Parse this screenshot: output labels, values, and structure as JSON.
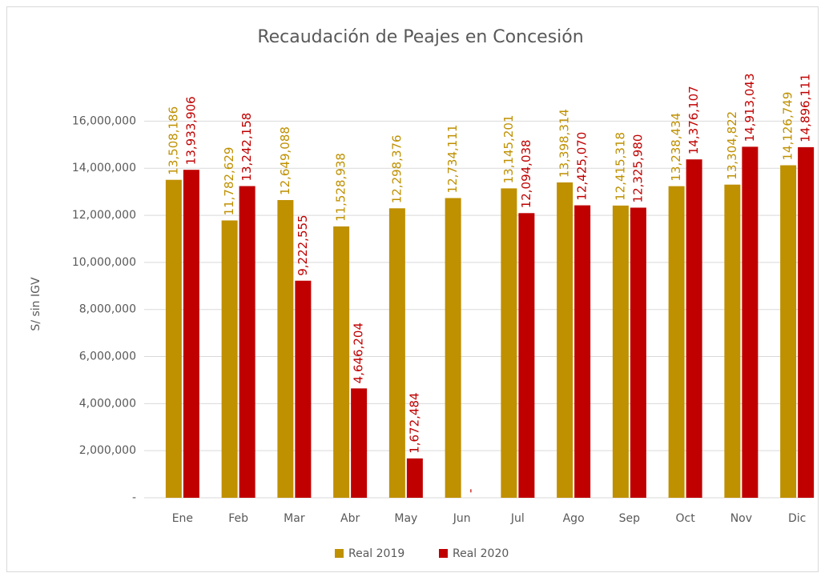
{
  "chart_data": {
    "type": "bar",
    "title": "Recaudación de Peajes en Concesión",
    "y_label": "S/ sin IGV",
    "categories": [
      "Ene",
      "Feb",
      "Mar",
      "Abr",
      "May",
      "Jun",
      "Jul",
      "Ago",
      "Sep",
      "Oct",
      "Nov",
      "Dic"
    ],
    "series": [
      {
        "name": "Real 2019",
        "color": "#bf9000",
        "values": [
          13508186,
          11782629,
          12649088,
          11528938,
          12298376,
          12734111,
          13145201,
          13398314,
          12415318,
          13238434,
          13304822,
          14126749
        ],
        "value_labels": [
          "13,508,186",
          "11,782,629",
          "12,649,088",
          "11,528,938",
          "12,298,376",
          "12,734,111",
          "13,145,201",
          "13,398,314",
          "12,415,318",
          "13,238,434",
          "13,304,822",
          "14,126,749"
        ]
      },
      {
        "name": "Real 2020",
        "color": "#c00000",
        "values": [
          13933906,
          13242158,
          9222555,
          4646204,
          1672484,
          0,
          12094038,
          12425070,
          12325980,
          14376107,
          14913043,
          14896111
        ],
        "value_labels": [
          "13,933,906",
          "13,242,158",
          "9,222,555",
          "4,646,204",
          "1,672,484",
          "-",
          "12,094,038",
          "12,425,070",
          "12,325,980",
          "14,376,107",
          "14,913,043",
          "14,896,111"
        ]
      }
    ],
    "ylim": [
      0,
      18000000
    ],
    "yticks": [
      {
        "value": 0,
        "label": "-"
      },
      {
        "value": 2000000,
        "label": "2,000,000"
      },
      {
        "value": 4000000,
        "label": "4,000,000"
      },
      {
        "value": 6000000,
        "label": "6,000,000"
      },
      {
        "value": 8000000,
        "label": "8,000,000"
      },
      {
        "value": 10000000,
        "label": "10,000,000"
      },
      {
        "value": 12000000,
        "label": "12,000,000"
      },
      {
        "value": 14000000,
        "label": "14,000,000"
      },
      {
        "value": 16000000,
        "label": "16,000,000"
      }
    ],
    "grid": true,
    "legend": "bottom"
  }
}
